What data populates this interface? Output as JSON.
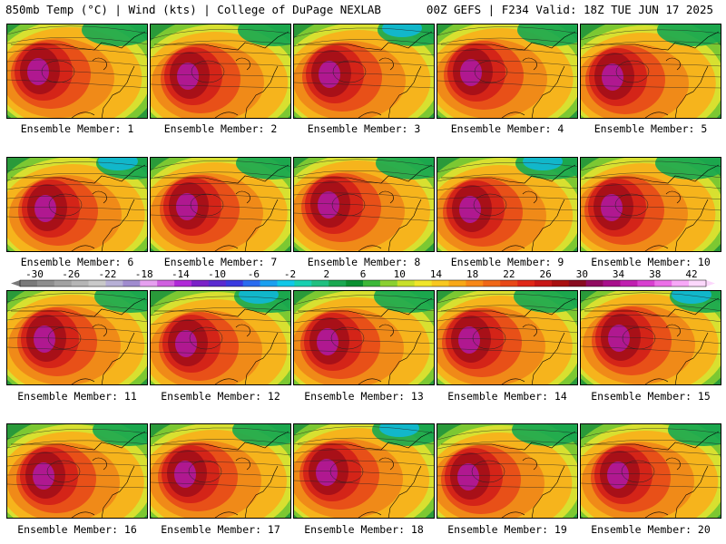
{
  "header": {
    "left": "850mb Temp (°C) | Wind (kts) | College of DuPage NEXLAB",
    "right": "00Z GEFS | F234 Valid: 18Z TUE JUN 17 2025"
  },
  "members": [
    {
      "label": "Ensemble Member: 1"
    },
    {
      "label": "Ensemble Member: 2"
    },
    {
      "label": "Ensemble Member: 3"
    },
    {
      "label": "Ensemble Member: 4"
    },
    {
      "label": "Ensemble Member: 5"
    },
    {
      "label": "Ensemble Member: 6"
    },
    {
      "label": "Ensemble Member: 7"
    },
    {
      "label": "Ensemble Member: 8"
    },
    {
      "label": "Ensemble Member: 9"
    },
    {
      "label": "Ensemble Member: 10"
    },
    {
      "label": "Ensemble Member: 11"
    },
    {
      "label": "Ensemble Member: 12"
    },
    {
      "label": "Ensemble Member: 13"
    },
    {
      "label": "Ensemble Member: 14"
    },
    {
      "label": "Ensemble Member: 15"
    },
    {
      "label": "Ensemble Member: 16"
    },
    {
      "label": "Ensemble Member: 17"
    },
    {
      "label": "Ensemble Member: 18"
    },
    {
      "label": "Ensemble Member: 19"
    },
    {
      "label": "Ensemble Member: 20"
    }
  ],
  "colorbar": {
    "tick_labels": [
      "-30",
      "-26",
      "-22",
      "-18",
      "-14",
      "-10",
      "-6",
      "-2",
      "2",
      "6",
      "10",
      "14",
      "18",
      "22",
      "26",
      "30",
      "34",
      "38",
      "42"
    ],
    "colors": [
      "#7a7a7a",
      "#8e8e8e",
      "#a2a2a2",
      "#b6b6b6",
      "#c9c9c9",
      "#b7b0d6",
      "#a08ccf",
      "#e6a0f0",
      "#d060e0",
      "#b02ad8",
      "#7b22c8",
      "#5a2bd0",
      "#3a3ae0",
      "#2a6cf0",
      "#1aa0f0",
      "#10c8e8",
      "#18d0b0",
      "#20c080",
      "#1aa850",
      "#0a9030",
      "#3cb838",
      "#8ad030",
      "#c8e028",
      "#f0e628",
      "#f8c820",
      "#f8a818",
      "#f88818",
      "#f06818",
      "#e84818",
      "#e02818",
      "#c81818",
      "#a81010",
      "#880c20",
      "#900c60",
      "#a8108c",
      "#c020b0",
      "#d840d0",
      "#ec70e8",
      "#f8a8f8",
      "#fcd8fc"
    ]
  }
}
